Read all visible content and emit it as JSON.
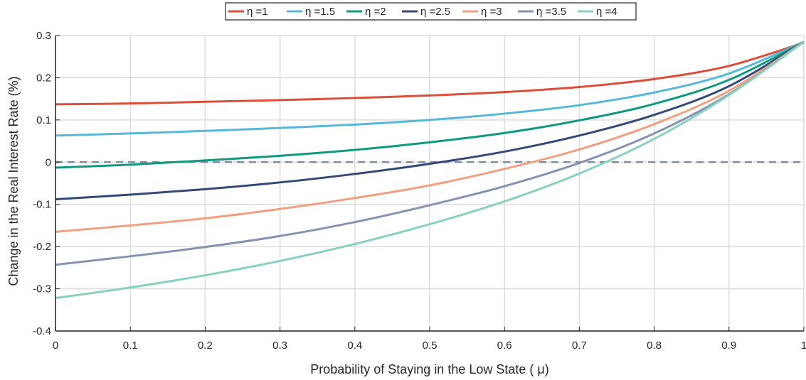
{
  "chart_data": {
    "type": "line",
    "xlabel": "Probability of Staying in the Low State ( μ)",
    "ylabel": "Change in the Real Interest Rate (%)",
    "xlim": [
      0,
      1
    ],
    "ylim": [
      -0.4,
      0.3
    ],
    "x_ticks": [
      0,
      0.1,
      0.2,
      0.3,
      0.4,
      0.5,
      0.6,
      0.7,
      0.8,
      0.9,
      1
    ],
    "x_tick_labels": [
      "0",
      "0.1",
      "0.2",
      "0.3",
      "0.4",
      "0.5",
      "0.6",
      "0.7",
      "0.8",
      "0.9",
      "1"
    ],
    "y_ticks": [
      0.3,
      0.2,
      0.1,
      0,
      -0.1,
      -0.2,
      -0.3,
      -0.4
    ],
    "y_tick_labels": [
      "0.3",
      "0.2",
      "0.1",
      "0",
      "-0.1",
      "-0.2",
      "-0.3",
      "-0.4"
    ],
    "grid": true,
    "legend_position": "top-center",
    "reference_line": {
      "y": 0,
      "style": "dashed",
      "color": "#7f8fab"
    },
    "x": [
      0,
      0.1,
      0.2,
      0.3,
      0.4,
      0.5,
      0.6,
      0.7,
      0.8,
      0.9,
      1.0
    ],
    "series": [
      {
        "name": "η =1",
        "color": "#d94f3a",
        "values": [
          0.137,
          0.139,
          0.143,
          0.147,
          0.152,
          0.158,
          0.166,
          0.178,
          0.197,
          0.228,
          0.283
        ]
      },
      {
        "name": "η =1.5",
        "color": "#56b8d8",
        "values": [
          0.063,
          0.068,
          0.074,
          0.081,
          0.089,
          0.1,
          0.115,
          0.135,
          0.165,
          0.21,
          0.285
        ]
      },
      {
        "name": "η =2",
        "color": "#0f9a80",
        "values": [
          -0.013,
          -0.006,
          0.004,
          0.015,
          0.029,
          0.047,
          0.069,
          0.099,
          0.138,
          0.195,
          0.285
        ]
      },
      {
        "name": "η =2.5",
        "color": "#33497a",
        "values": [
          -0.088,
          -0.077,
          -0.064,
          -0.048,
          -0.028,
          -0.004,
          0.025,
          0.063,
          0.112,
          0.18,
          0.285
        ]
      },
      {
        "name": "η =3",
        "color": "#f0a080",
        "values": [
          -0.165,
          -0.15,
          -0.133,
          -0.111,
          -0.085,
          -0.055,
          -0.016,
          0.03,
          0.09,
          0.169,
          0.285
        ]
      },
      {
        "name": "η =3.5",
        "color": "#8492b3",
        "values": [
          -0.243,
          -0.223,
          -0.201,
          -0.175,
          -0.142,
          -0.102,
          -0.057,
          -0.002,
          0.068,
          0.161,
          0.285
        ]
      },
      {
        "name": "η =4",
        "color": "#88d0c0",
        "values": [
          -0.322,
          -0.297,
          -0.268,
          -0.234,
          -0.194,
          -0.147,
          -0.093,
          -0.027,
          0.055,
          0.159,
          0.285
        ]
      }
    ]
  }
}
